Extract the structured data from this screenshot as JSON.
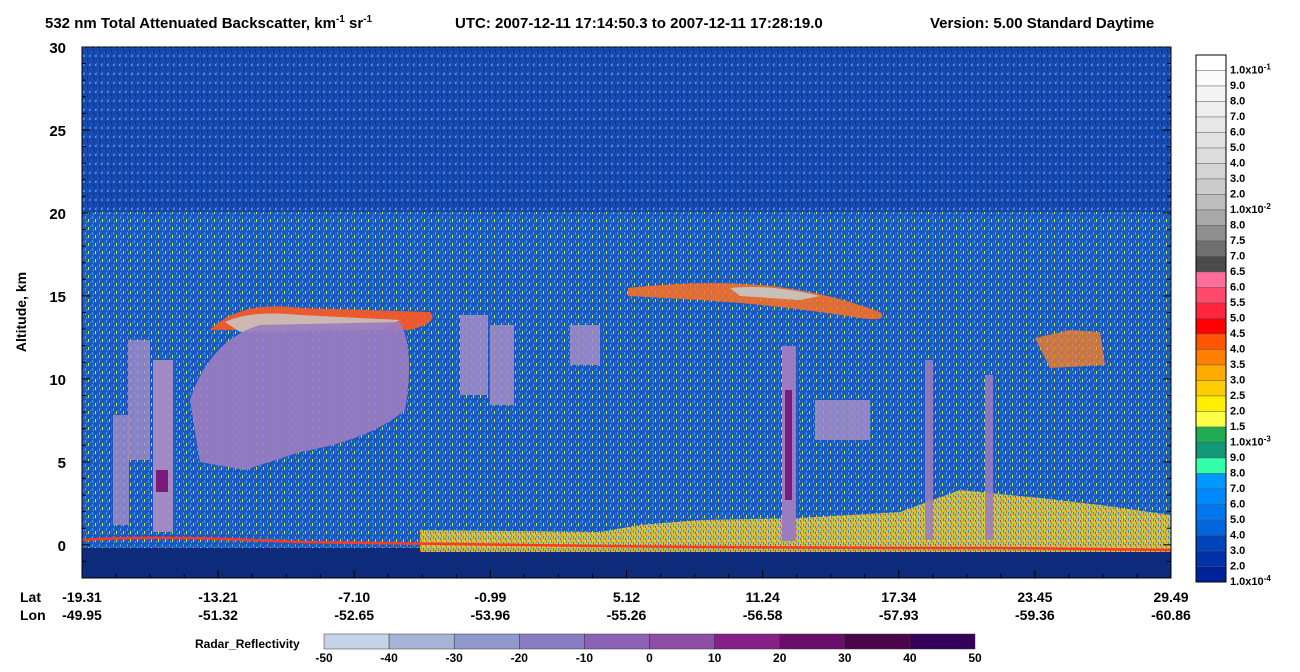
{
  "title": {
    "main": "532 nm Total Attenuated Backscatter, km",
    "km_exp": "-1",
    "sr": " sr",
    "sr_exp": "-1",
    "utc": "UTC:  2007-12-11 17:14:50.3  to  2007-12-11 17:28:19.0",
    "version": "Version: 5.00  Standard  Daytime"
  },
  "chart_data": {
    "type": "heatmap",
    "ylabel": "Altitude, km",
    "ylim": [
      -2,
      30
    ],
    "y_ticks": [
      "0",
      "5",
      "10",
      "15",
      "20",
      "25",
      "30"
    ],
    "x_axis": {
      "lat_label": "Lat",
      "lon_label": "Lon",
      "lat": [
        "-19.31",
        "-13.21",
        "-7.10",
        "-0.99",
        "5.12",
        "11.24",
        "17.34",
        "23.45",
        "29.49"
      ],
      "lon": [
        "-49.95",
        "-51.32",
        "-52.65",
        "-53.96",
        "-55.26",
        "-56.58",
        "-57.93",
        "-59.36",
        "-60.86"
      ]
    },
    "colorbar": {
      "labels": [
        {
          "base": "1.0x10",
          "exp": "-1"
        },
        {
          "base": "9.0"
        },
        {
          "base": "8.0"
        },
        {
          "base": "7.0"
        },
        {
          "base": "6.0"
        },
        {
          "base": "5.0"
        },
        {
          "base": "4.0"
        },
        {
          "base": "3.0"
        },
        {
          "base": "2.0"
        },
        {
          "base": "1.0x10",
          "exp": "-2"
        },
        {
          "base": "8.0"
        },
        {
          "base": "7.5"
        },
        {
          "base": "7.0"
        },
        {
          "base": "6.5"
        },
        {
          "base": "6.0"
        },
        {
          "base": "5.5"
        },
        {
          "base": "5.0"
        },
        {
          "base": "4.5"
        },
        {
          "base": "4.0"
        },
        {
          "base": "3.5"
        },
        {
          "base": "3.0"
        },
        {
          "base": "2.5"
        },
        {
          "base": "2.0"
        },
        {
          "base": "1.5"
        },
        {
          "base": "1.0x10",
          "exp": "-3"
        },
        {
          "base": "9.0"
        },
        {
          "base": "8.0"
        },
        {
          "base": "7.0"
        },
        {
          "base": "6.0"
        },
        {
          "base": "5.0"
        },
        {
          "base": "4.0"
        },
        {
          "base": "3.0"
        },
        {
          "base": "2.0"
        },
        {
          "base": "1.0x10",
          "exp": "-4"
        }
      ],
      "colors": [
        "#ffffff",
        "#fafafa",
        "#f4f4f4",
        "#eeeeee",
        "#e8e8e8",
        "#e2e2e2",
        "#dcdcdc",
        "#d4d4d4",
        "#cbcbcb",
        "#bdbdbd",
        "#a9a9a9",
        "#8f8f8f",
        "#6f6f6f",
        "#4b4b4b",
        "#ff6e9b",
        "#ff4a6e",
        "#ff2640",
        "#ff0000",
        "#ff5500",
        "#ff8000",
        "#ffaa00",
        "#ffcc00",
        "#ffee00",
        "#ffff44",
        "#22aa55",
        "#119977",
        "#33ffaa",
        "#0099ff",
        "#0088ff",
        "#0077ee",
        "#0066dd",
        "#0044bb",
        "#0033aa",
        "#002299"
      ]
    },
    "radar_legend": {
      "title": "Radar_Reflectivity",
      "ticks": [
        "-50",
        "-40",
        "-30",
        "-20",
        "-10",
        "0",
        "10",
        "20",
        "30",
        "40",
        "50"
      ],
      "colors": [
        "#c6d4e8",
        "#a7b4d8",
        "#9198cc",
        "#8a7cc2",
        "#8c62b6",
        "#8d4ea6",
        "#88208a",
        "#6b0d6b",
        "#4a0448",
        "#35005a",
        "#3a0a8a"
      ]
    },
    "palette": {
      "background": "#1a48a8",
      "dark_band": "#0d2b7a",
      "aerosol": "#e8e040",
      "cloud_edge": "#ff4020",
      "cloud_core": "#c8c8c8",
      "radar": "#9a7cc0",
      "radar_core": "#7a1a7a",
      "surface": "#ff3a20"
    }
  }
}
